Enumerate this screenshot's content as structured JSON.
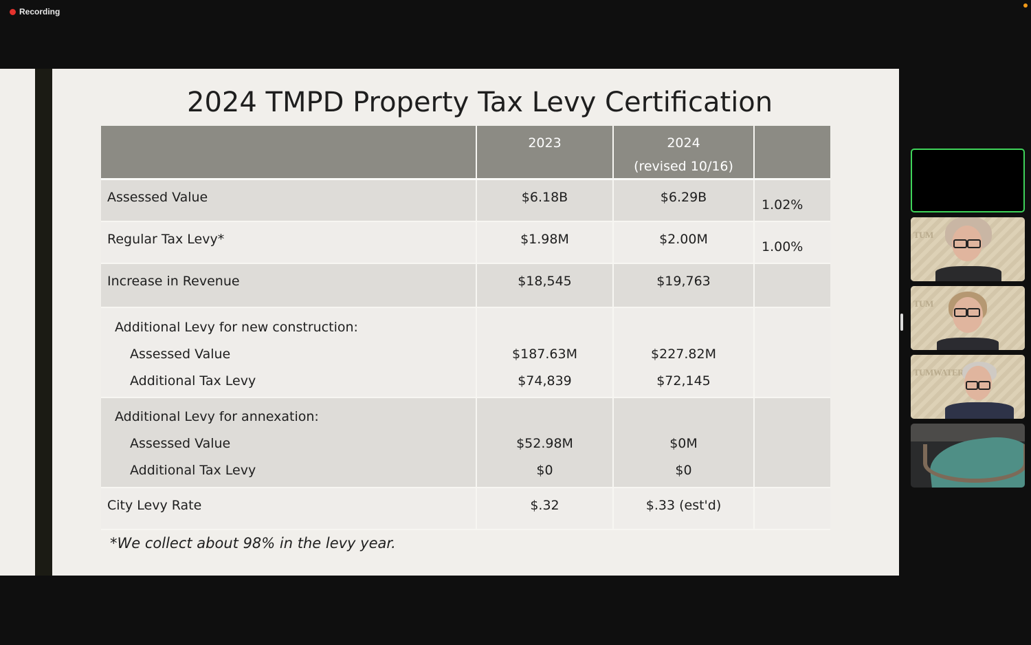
{
  "recording": {
    "label": "Recording",
    "dot_color": "#e5322d"
  },
  "slide": {
    "title": "2024 TMPD Property Tax Levy Certification",
    "table": {
      "header": {
        "col_2023": "2023",
        "col_2024_line1": "2024",
        "col_2024_line2": "(revised 10/16)"
      },
      "rows": {
        "assessed_value": {
          "label": "Assessed Value",
          "v2023": "$6.18B",
          "v2024": "$6.29B",
          "pct": "1.02%"
        },
        "regular_levy": {
          "label": "Regular Tax Levy*",
          "v2023": "$1.98M",
          "v2024": "$2.00M",
          "pct": "1.00%"
        },
        "increase_revenue": {
          "label": "Increase in Revenue",
          "v2023": "$18,545",
          "v2024": "$19,763"
        },
        "new_construction": {
          "title": "Additional Levy for new construction:",
          "assessed_label": "Assessed Value",
          "assessed_2023": "$187.63M",
          "assessed_2024": "$227.82M",
          "levy_label": "Additional Tax Levy",
          "levy_2023": "$74,839",
          "levy_2024": "$72,145"
        },
        "annexation": {
          "title": "Additional Levy for annexation:",
          "assessed_label": "Assessed Value",
          "assessed_2023": "$52.98M",
          "assessed_2024": "$0M",
          "levy_label": "Additional Tax Levy",
          "levy_2023": "$0",
          "levy_2024": "$0"
        },
        "city_levy_rate": {
          "label": "City Levy Rate",
          "v2023": "$.32",
          "v2024": "$.33 (est'd)"
        }
      }
    },
    "footnote": "*We collect about 98% in the levy year."
  },
  "participants": {
    "tile_2_wall": "TUM",
    "tile_3_wall": "TUM",
    "tile_4_wall": "TUMWATER",
    "active_border_color": "#3fd45a"
  }
}
